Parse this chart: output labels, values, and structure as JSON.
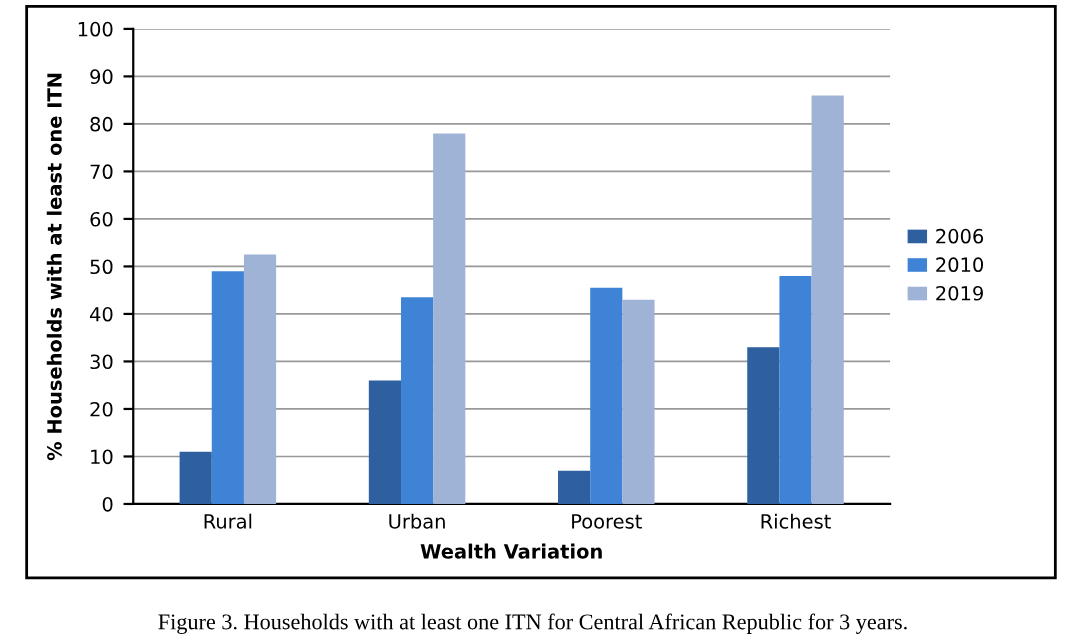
{
  "chart_data": {
    "type": "bar",
    "xlabel": "Wealth Variation",
    "ylabel": "% Households with at least one ITN",
    "categories": [
      "Rural",
      "Urban",
      "Poorest",
      "Richest"
    ],
    "series": [
      {
        "name": "2006",
        "color": "#2e5f9e",
        "values": [
          11,
          26,
          7,
          33
        ]
      },
      {
        "name": "2010",
        "color": "#3f83d6",
        "values": [
          49,
          43.5,
          45.5,
          48
        ]
      },
      {
        "name": "2019",
        "color": "#9fb3d6",
        "values": [
          52.5,
          78,
          43,
          86
        ]
      }
    ],
    "ylim": [
      0,
      100
    ],
    "yticks": [
      0,
      10,
      20,
      30,
      40,
      50,
      60,
      70,
      80,
      90,
      100
    ],
    "grid": "y",
    "legend": "right",
    "annotations": [
      "Figure 3. Households with at least one ITN for Central African Republic for 3 years."
    ]
  }
}
